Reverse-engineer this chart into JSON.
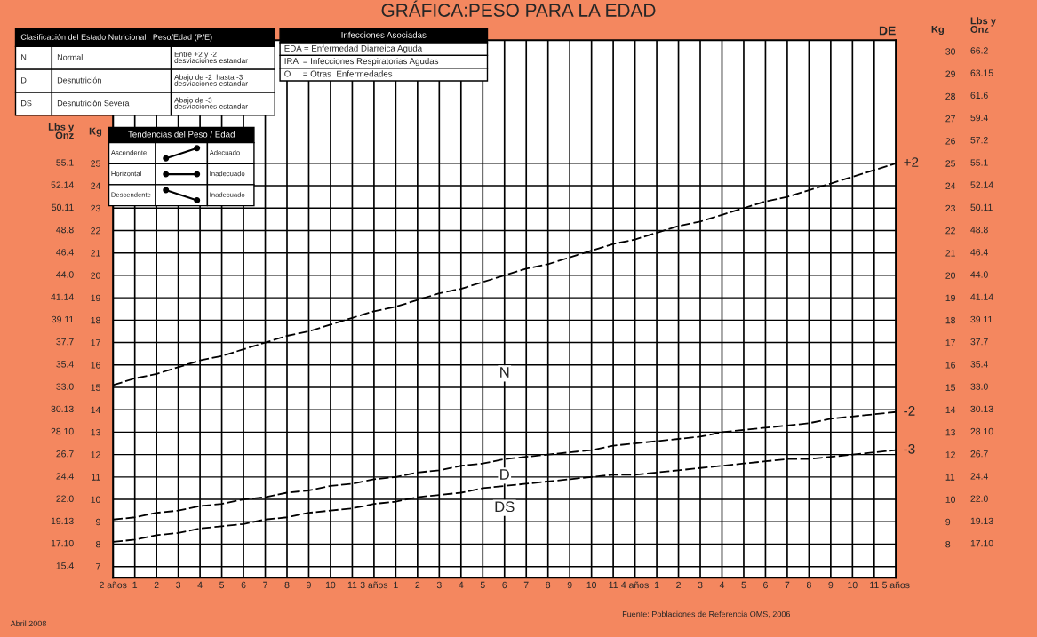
{
  "chart_data": {
    "type": "line",
    "title": "GRÁFICA:PESO PARA LA EDAD",
    "categories": [
      "2 años",
      "1",
      "2",
      "3",
      "4",
      "5",
      "6",
      "7",
      "8",
      "9",
      "10",
      "11",
      "3 años",
      "1",
      "2",
      "3",
      "4",
      "5",
      "6",
      "7",
      "8",
      "9",
      "10",
      "11",
      "4 años",
      "1",
      "2",
      "3",
      "4",
      "5",
      "6",
      "7",
      "8",
      "9",
      "10",
      "11",
      "5 años"
    ],
    "ylabel": "Kg",
    "ylim": [
      6.5,
      30.5
    ],
    "yticks": [
      7,
      8,
      9,
      10,
      11,
      12,
      13,
      14,
      15,
      16,
      17,
      18,
      19,
      20,
      21,
      22,
      23,
      24,
      25
    ],
    "y2label": "Kg",
    "y2lim": [
      6.5,
      30.5
    ],
    "y2ticks": [
      8,
      9,
      10,
      11,
      12,
      13,
      14,
      15,
      16,
      17,
      18,
      19,
      20,
      21,
      22,
      23,
      24,
      25,
      26,
      27,
      28,
      29,
      30
    ],
    "series": [
      {
        "name": "+2",
        "color": "#000000",
        "values": [
          15.1,
          15.4,
          15.6,
          15.9,
          16.2,
          16.4,
          16.7,
          17.0,
          17.3,
          17.5,
          17.8,
          18.1,
          18.4,
          18.6,
          18.9,
          19.2,
          19.4,
          19.7,
          20.0,
          20.3,
          20.5,
          20.8,
          21.1,
          21.4,
          21.6,
          21.9,
          22.2,
          22.4,
          22.7,
          23.0,
          23.3,
          23.5,
          23.8,
          24.1,
          24.4,
          24.7,
          25.0
        ]
      },
      {
        "name": "-2",
        "color": "#000000",
        "values": [
          9.1,
          9.2,
          9.4,
          9.5,
          9.7,
          9.8,
          10.0,
          10.1,
          10.3,
          10.4,
          10.6,
          10.7,
          10.9,
          11.0,
          11.2,
          11.3,
          11.5,
          11.6,
          11.8,
          11.9,
          12.0,
          12.1,
          12.2,
          12.4,
          12.5,
          12.6,
          12.7,
          12.8,
          13.0,
          13.1,
          13.2,
          13.3,
          13.4,
          13.6,
          13.7,
          13.8,
          13.9
        ]
      },
      {
        "name": "-3",
        "color": "#000000",
        "values": [
          8.1,
          8.2,
          8.4,
          8.5,
          8.7,
          8.8,
          8.9,
          9.1,
          9.2,
          9.4,
          9.5,
          9.6,
          9.8,
          9.9,
          10.1,
          10.2,
          10.3,
          10.5,
          10.6,
          10.7,
          10.8,
          10.9,
          11.0,
          11.1,
          11.1,
          11.2,
          11.3,
          11.4,
          11.5,
          11.6,
          11.7,
          11.8,
          11.8,
          11.9,
          12.0,
          12.1,
          12.2
        ]
      }
    ],
    "line_style": "dashed",
    "marker": "none",
    "grid": true,
    "legend": false,
    "annotations": [
      "N",
      "D",
      "DS",
      "DE",
      "Clasificación del Estado Nutricional   Peso/Edad (P/E)",
      "N",
      "Normal",
      "Entre +2 y -2\ndesviaciones estandar",
      "D",
      "Desnutrición",
      "Abajo de -2  hasta -3\ndesviaciones estandar",
      "DS",
      "Desnutrición Severa",
      "Abajo de -3\ndesviaciones estandar",
      "Infecciones Asociadas",
      "EDA = Enfermedad Diarreica Aguda",
      "IRA  = Infecciones Respiratorias Agudas",
      "O     = Otras  Enfermedades",
      "Tendencias del Peso / Edad",
      "Ascendente",
      "Adecuado",
      "Horizontal",
      "Inadecuado",
      "Descendente",
      "Inadecuado",
      "Fuente: Poblaciones de Referencia OMS, 2006",
      "Abril 2008",
      "Lbs y\nOnz",
      "15.4",
      "17.10",
      "19.13",
      "22.0",
      "24.4",
      "26.7",
      "28.10",
      "30.13",
      "33.0",
      "35.4",
      "37.7",
      "39.11",
      "41.14",
      "44.0",
      "46.4",
      "48.8",
      "50.11",
      "52.14",
      "55.1",
      "Lbs y\nOnz",
      "17.10",
      "19.13",
      "22.0",
      "24.4",
      "26.7",
      "28.10",
      "30.13",
      "33.0",
      "35.4",
      "37.7",
      "39.11",
      "41.14",
      "44.0",
      "46.4",
      "48.8",
      "50.11",
      "52.14",
      "55.1",
      "57.2",
      "59.4",
      "61.6",
      "63.15",
      "66.2"
    ]
  }
}
